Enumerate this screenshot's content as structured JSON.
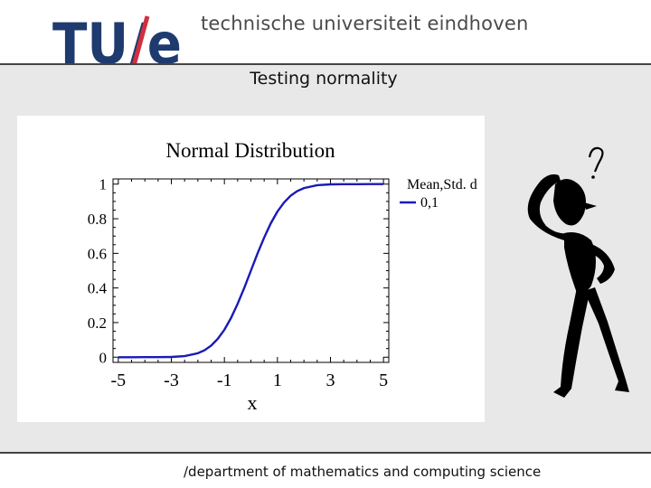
{
  "header": {
    "logo_text": "TU/e",
    "university_name": "technische universiteit eindhoven"
  },
  "slide": {
    "title": "Testing normality"
  },
  "footer": {
    "text": "/department of mathematics and computing science"
  },
  "colors": {
    "tue_blue": "#1f3a6e",
    "tue_red": "#d1303f",
    "curve_blue": "#1a1ab8"
  },
  "chart_data": {
    "type": "line",
    "title": "Normal Distribution",
    "xlabel": "x",
    "ylabel": "",
    "xlim": [
      -5.2,
      5.2
    ],
    "ylim": [
      -0.03,
      1.03
    ],
    "x_ticks": [
      -5,
      -3,
      -1,
      1,
      3,
      5
    ],
    "x_tick_labels": [
      "-5",
      "-3",
      "-1",
      "1",
      "3",
      "5"
    ],
    "y_ticks": [
      0,
      0.2,
      0.4,
      0.6,
      0.8,
      1
    ],
    "y_tick_labels": [
      "0",
      "0.2",
      "0.4",
      "0.6",
      "0.8",
      "1"
    ],
    "legend": {
      "title": "Mean,Std. d",
      "placement": "right"
    },
    "series": [
      {
        "name": "0,1",
        "color": "#1a1ab8",
        "x": [
          -5,
          -4.5,
          -4,
          -3.5,
          -3,
          -2.5,
          -2,
          -1.75,
          -1.5,
          -1.25,
          -1,
          -0.75,
          -0.5,
          -0.25,
          0,
          0.25,
          0.5,
          0.75,
          1,
          1.25,
          1.5,
          1.75,
          2,
          2.5,
          3,
          3.5,
          4,
          4.5,
          5
        ],
        "values": [
          3e-07,
          3.4e-06,
          3.17e-05,
          0.00023,
          0.0013,
          0.0062,
          0.0228,
          0.0401,
          0.0668,
          0.1056,
          0.1587,
          0.2266,
          0.3085,
          0.4013,
          0.5,
          0.5987,
          0.6915,
          0.7734,
          0.8413,
          0.8944,
          0.9332,
          0.9599,
          0.9772,
          0.9938,
          0.9987,
          0.99977,
          0.99997,
          0.999997,
          0.9999997
        ]
      }
    ]
  }
}
